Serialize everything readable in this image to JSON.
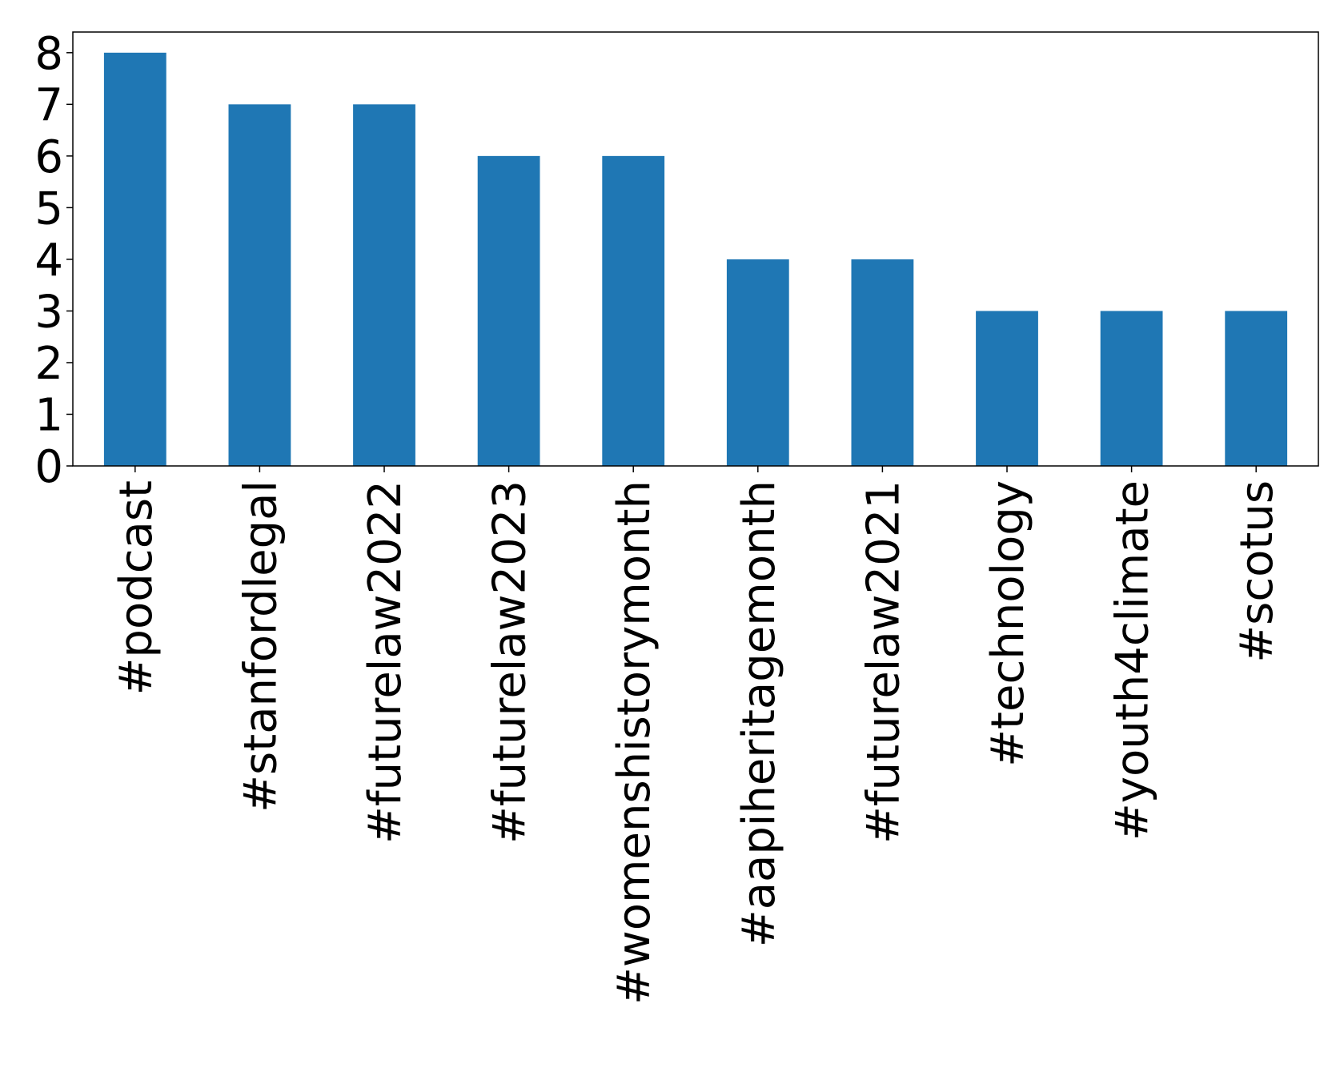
{
  "chart_data": {
    "type": "bar",
    "title": "",
    "xlabel": "",
    "ylabel": "",
    "categories": [
      "#podcast",
      "#stanfordlegal",
      "#futurelaw2022",
      "#futurelaw2023",
      "#womenshistorymonth",
      "#aapiheritagemonth",
      "#futurelaw2021",
      "#technology",
      "#youth4climate",
      "#scotus"
    ],
    "values": [
      8,
      7,
      7,
      6,
      6,
      4,
      4,
      3,
      3,
      3
    ],
    "ylim": [
      0,
      8.4
    ],
    "yticks": [
      "0",
      "1",
      "2",
      "3",
      "4",
      "5",
      "6",
      "7",
      "8"
    ],
    "grid": false,
    "legend": "none",
    "bar_color": "#1f77b4"
  }
}
